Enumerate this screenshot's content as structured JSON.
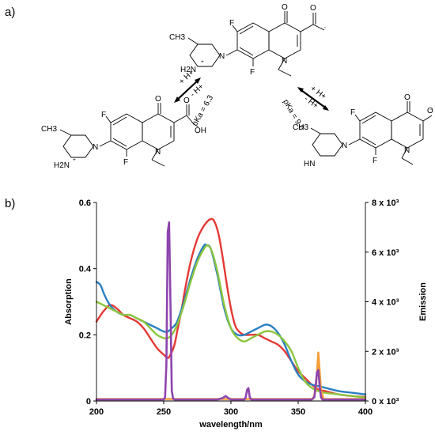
{
  "panel_labels": {
    "a": "a)",
    "b": "b)"
  },
  "scheme": {
    "top_molecule": {
      "substituents": [
        "F",
        "O",
        "O",
        "F",
        "N",
        "N",
        "H2N",
        "+",
        "CH3",
        "-"
      ]
    },
    "left_molecule": {
      "substituents": [
        "F",
        "O",
        "O",
        "OH",
        "F",
        "N",
        "N",
        "H2N",
        "+",
        "CH3"
      ]
    },
    "right_molecule": {
      "substituents": [
        "F",
        "O",
        "O",
        "F",
        "N",
        "N",
        "HN",
        "CH3",
        "-"
      ]
    },
    "equilibrium_left": {
      "forward": "+ H+",
      "backward": "- H+",
      "pka": "pKa = 6.3"
    },
    "equilibrium_right": {
      "forward": "+ H+",
      "backward": "- H+",
      "pka": "pKa = 9.0"
    }
  },
  "colors": {
    "red": "#e53935",
    "blue": "#2b7fc1",
    "green": "#8cc63e",
    "purple": "#8e44ad",
    "orange": "#f5a03a"
  },
  "chart_data": {
    "type": "line",
    "xlabel": "wavelength/nm",
    "ylabel_left": "Absorption",
    "ylabel_right": "Emission",
    "xlim": [
      200,
      400
    ],
    "ylim_left": [
      0,
      0.6
    ],
    "ylim_right": [
      0,
      8000
    ],
    "x_ticks": [
      "200",
      "250",
      "300",
      "350",
      "400"
    ],
    "y_ticks_left": [
      "0",
      "0.2",
      "0.4",
      "0.6"
    ],
    "y_ticks_right": [
      "0 x 10³",
      "2 x 10³",
      "4 x 10³",
      "6 x 10³",
      "8 x 10³"
    ],
    "grid": false,
    "series": [
      {
        "color_key": "red",
        "axis": "left",
        "x": [
          200,
          205,
          210,
          215,
          220,
          225,
          230,
          235,
          240,
          245,
          250,
          253,
          255,
          258,
          260,
          263,
          266,
          270,
          275,
          280,
          285,
          288,
          291,
          294,
          297,
          300,
          303,
          306,
          310,
          315,
          320,
          325,
          330,
          335,
          340,
          345,
          350,
          355,
          360,
          365,
          370,
          375,
          380,
          390,
          400
        ],
        "y": [
          0.24,
          0.27,
          0.29,
          0.28,
          0.26,
          0.25,
          0.24,
          0.22,
          0.19,
          0.16,
          0.14,
          0.13,
          0.14,
          0.17,
          0.21,
          0.27,
          0.34,
          0.42,
          0.49,
          0.53,
          0.55,
          0.54,
          0.5,
          0.43,
          0.35,
          0.28,
          0.23,
          0.21,
          0.2,
          0.2,
          0.2,
          0.19,
          0.18,
          0.17,
          0.15,
          0.12,
          0.09,
          0.07,
          0.05,
          0.035,
          0.03,
          0.025,
          0.02,
          0.015,
          0.012
        ]
      },
      {
        "color_key": "blue",
        "axis": "left",
        "x": [
          200,
          203,
          206,
          210,
          215,
          220,
          225,
          230,
          235,
          240,
          245,
          250,
          253,
          256,
          260,
          265,
          270,
          275,
          280,
          282,
          285,
          290,
          295,
          300,
          305,
          310,
          315,
          320,
          325,
          328,
          332,
          336,
          340,
          345,
          350,
          355,
          360,
          365,
          370,
          380,
          390,
          400
        ],
        "y": [
          0.36,
          0.35,
          0.32,
          0.29,
          0.27,
          0.26,
          0.26,
          0.25,
          0.24,
          0.23,
          0.22,
          0.21,
          0.21,
          0.22,
          0.24,
          0.3,
          0.37,
          0.43,
          0.47,
          0.47,
          0.46,
          0.38,
          0.28,
          0.22,
          0.2,
          0.2,
          0.21,
          0.22,
          0.23,
          0.23,
          0.22,
          0.2,
          0.17,
          0.12,
          0.08,
          0.06,
          0.05,
          0.045,
          0.04,
          0.03,
          0.025,
          0.02
        ]
      },
      {
        "color_key": "green",
        "axis": "left",
        "x": [
          200,
          205,
          210,
          215,
          220,
          225,
          230,
          235,
          240,
          245,
          250,
          253,
          256,
          260,
          265,
          270,
          275,
          280,
          283,
          286,
          290,
          295,
          300,
          305,
          310,
          315,
          320,
          325,
          330,
          335,
          340,
          345,
          350,
          355,
          360,
          365,
          370,
          380,
          390,
          400
        ],
        "y": [
          0.3,
          0.29,
          0.28,
          0.27,
          0.26,
          0.26,
          0.25,
          0.24,
          0.22,
          0.2,
          0.19,
          0.19,
          0.2,
          0.23,
          0.29,
          0.36,
          0.42,
          0.46,
          0.47,
          0.45,
          0.39,
          0.29,
          0.22,
          0.19,
          0.18,
          0.19,
          0.2,
          0.21,
          0.21,
          0.2,
          0.18,
          0.15,
          0.1,
          0.06,
          0.04,
          0.03,
          0.025,
          0.02,
          0.015,
          0.01
        ]
      },
      {
        "color_key": "orange",
        "axis": "right",
        "x": [
          200,
          361,
          363,
          365,
          367,
          369,
          400
        ],
        "y": [
          80,
          80,
          400,
          1950,
          400,
          80,
          80
        ]
      },
      {
        "color_key": "purple",
        "axis": "right",
        "x": [
          200,
          250,
          251,
          252,
          253,
          254,
          255,
          256,
          257,
          258,
          290,
          294,
          296,
          298,
          300,
          310,
          311,
          312,
          313,
          314,
          315,
          360,
          362,
          363,
          364,
          365,
          366,
          367,
          368,
          400
        ],
        "y": [
          60,
          60,
          150,
          1500,
          6800,
          7200,
          4000,
          400,
          100,
          60,
          60,
          120,
          200,
          120,
          60,
          60,
          150,
          450,
          520,
          150,
          60,
          60,
          150,
          600,
          1150,
          1250,
          600,
          150,
          60,
          60
        ]
      }
    ]
  }
}
